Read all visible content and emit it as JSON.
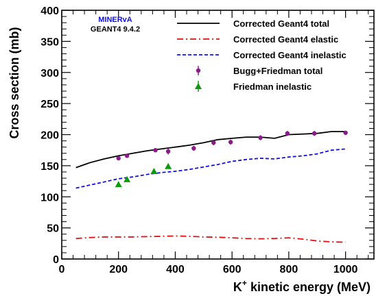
{
  "chart_data": {
    "type": "line",
    "xlabel": "K",
    "xlabel_sup": "+",
    "xlabel_rest": " kinetic energy (MeV)",
    "ylabel": "Cross section (mb)",
    "xlim": [
      0,
      1100
    ],
    "ylim": [
      0,
      400
    ],
    "x_ticks": [
      0,
      200,
      400,
      600,
      800,
      1000
    ],
    "x_tick_labels": [
      "0",
      "200",
      "400",
      "600",
      "800",
      "1000"
    ],
    "y_ticks": [
      0,
      50,
      100,
      150,
      200,
      250,
      300,
      350,
      400
    ],
    "y_tick_labels": [
      "0",
      "50",
      "100",
      "150",
      "200",
      "250",
      "300",
      "350",
      "400"
    ],
    "grid": false,
    "legend_position": "top-right",
    "annotations": [
      {
        "text": "MINERvA",
        "color": "#1010dd"
      },
      {
        "text": "GEANT4 9.4.2",
        "color": "#000000"
      }
    ],
    "series": [
      {
        "name": "Corrected Geant4 total",
        "kind": "line",
        "color": "#000000",
        "dash": "",
        "x": [
          50,
          100,
          150,
          200,
          250,
          300,
          350,
          400,
          450,
          500,
          550,
          600,
          650,
          700,
          750,
          800,
          850,
          900,
          950,
          1000
        ],
        "y": [
          147,
          155,
          161,
          166,
          170,
          174,
          177,
          180,
          183,
          187,
          192,
          194,
          196,
          196,
          194,
          200,
          201,
          202,
          205,
          205
        ]
      },
      {
        "name": "Corrected Geant4 elastic",
        "kind": "line",
        "color": "#e01010",
        "dash": "9,4,2,4",
        "x": [
          50,
          100,
          150,
          200,
          250,
          300,
          350,
          400,
          450,
          500,
          550,
          600,
          650,
          700,
          750,
          800,
          850,
          900,
          950,
          1000
        ],
        "y": [
          33,
          34.5,
          35.5,
          35.5,
          35.5,
          36,
          36.5,
          37,
          36.5,
          35.5,
          35,
          34,
          33,
          32.5,
          33,
          34,
          32,
          29,
          27.5,
          27
        ]
      },
      {
        "name": "Corrected Geant4 inelastic",
        "kind": "line",
        "color": "#1010e0",
        "dash": "5,3",
        "x": [
          50,
          100,
          150,
          200,
          250,
          300,
          350,
          400,
          450,
          500,
          550,
          600,
          650,
          700,
          750,
          800,
          850,
          900,
          950,
          1000
        ],
        "y": [
          114,
          119,
          124,
          129,
          132,
          136,
          139,
          141,
          144,
          148,
          152,
          157,
          160,
          162,
          161,
          164,
          166,
          169,
          175,
          177
        ]
      },
      {
        "name": "Bugg+Friedman total",
        "kind": "points",
        "marker": "circle",
        "color": "#8b1a8b",
        "x": [
          200,
          230,
          330,
          375,
          465,
          535,
          595,
          700,
          795,
          890,
          1000
        ],
        "y": [
          162,
          166,
          175,
          173,
          178,
          187,
          188,
          195,
          202,
          202,
          203
        ],
        "err": [
          2,
          2,
          2,
          5,
          4,
          4,
          4,
          4,
          4,
          4,
          3
        ]
      },
      {
        "name": "Friedman inelastic",
        "kind": "points",
        "marker": "triangle",
        "color": "#0a9a0a",
        "x": [
          200,
          230,
          325,
          375
        ],
        "y": [
          120,
          128,
          141,
          149
        ],
        "err": [
          0,
          0,
          0,
          0
        ]
      }
    ]
  }
}
